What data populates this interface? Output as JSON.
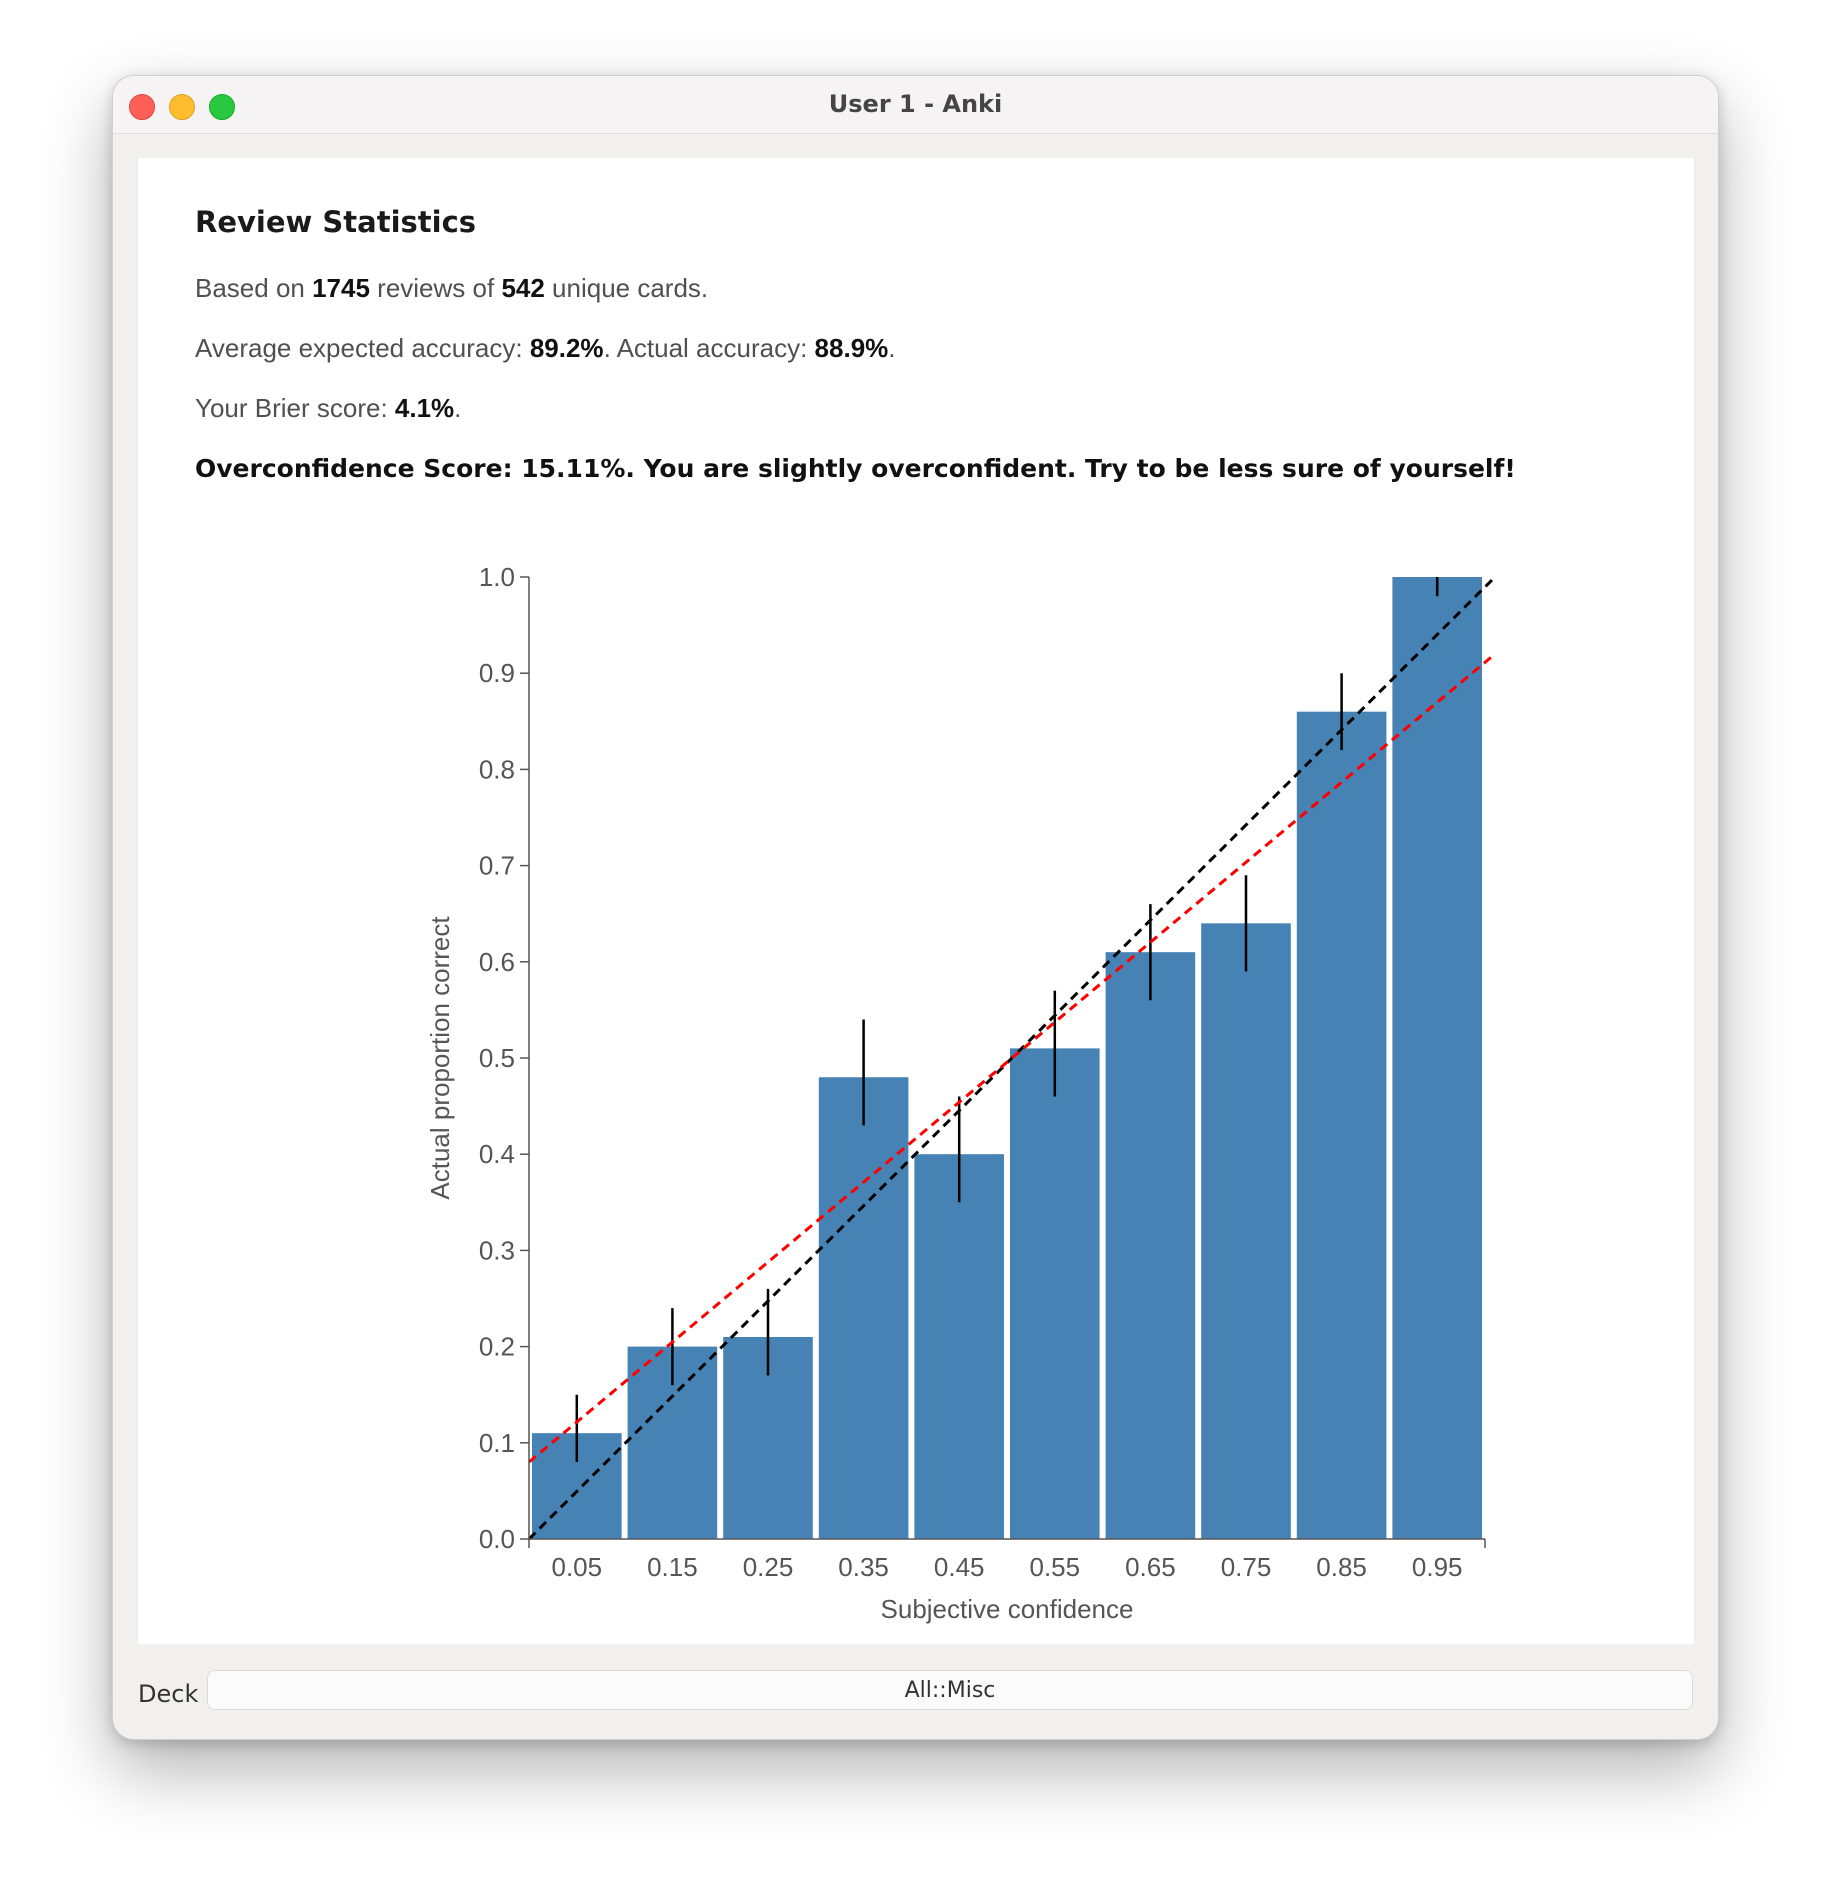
{
  "window": {
    "title": "User 1 - Anki"
  },
  "stats": {
    "heading": "Review Statistics",
    "line1": {
      "prefix": "Based on ",
      "reviews": "1745",
      "middle": " reviews of ",
      "cards": "542",
      "suffix": " unique cards."
    },
    "line2": {
      "prefix": "Average expected accuracy: ",
      "expected": "89.2%",
      "middle": ". Actual accuracy: ",
      "actual": "88.9%",
      "suffix": "."
    },
    "line3": {
      "prefix": "Your Brier score: ",
      "brier": "4.1%",
      "suffix": "."
    },
    "overconfidence": "Overconfidence Score: 15.11%. You are slightly overconfident. Try to be less sure of yourself!"
  },
  "chart_data": {
    "type": "bar",
    "categories": [
      "0.05",
      "0.15",
      "0.25",
      "0.35",
      "0.45",
      "0.55",
      "0.65",
      "0.75",
      "0.85",
      "0.95"
    ],
    "values": [
      0.11,
      0.2,
      0.21,
      0.48,
      0.4,
      0.51,
      0.61,
      0.64,
      0.86,
      1.0
    ],
    "error_low": [
      0.08,
      0.16,
      0.17,
      0.43,
      0.35,
      0.46,
      0.56,
      0.59,
      0.82,
      0.98
    ],
    "error_high": [
      0.15,
      0.24,
      0.26,
      0.54,
      0.46,
      0.57,
      0.66,
      0.69,
      0.9,
      1.0
    ],
    "xlabel": "Subjective confidence",
    "ylabel": "Actual proportion correct",
    "ylim": [
      0,
      1
    ],
    "xlim": [
      0,
      1
    ],
    "yticks": [
      "0.0",
      "0.1",
      "0.2",
      "0.3",
      "0.4",
      "0.5",
      "0.6",
      "0.7",
      "0.8",
      "0.9",
      "1.0"
    ],
    "reference_line": {
      "name": "perfect calibration",
      "from": [
        0,
        0
      ],
      "to": [
        1,
        1
      ],
      "style": "dashed",
      "color": "#000000"
    },
    "fit_line": {
      "name": "fitted calibration",
      "from": [
        0,
        0.08
      ],
      "to": [
        1,
        0.92
      ],
      "style": "dashed",
      "color": "#ff0000"
    },
    "bar_color": "#4682b4"
  },
  "deck": {
    "label": "Deck",
    "value": "All::Misc"
  }
}
